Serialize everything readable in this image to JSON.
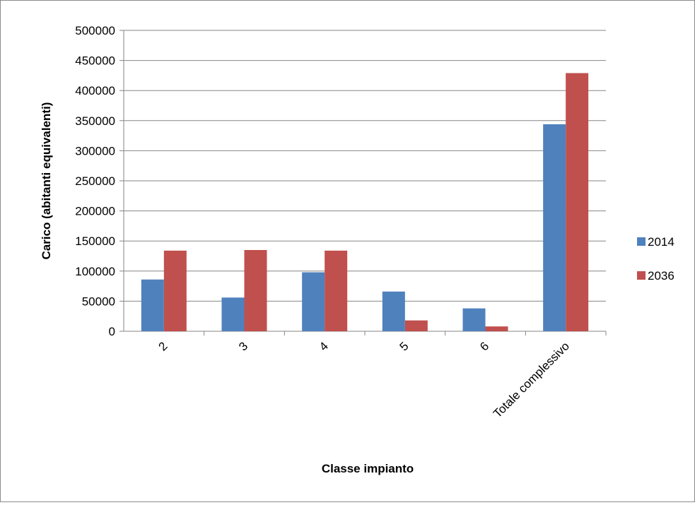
{
  "chart_data": {
    "type": "bar",
    "title": "",
    "xlabel": "Classe impianto",
    "ylabel": "Carico (abitanti equivalenti)",
    "categories": [
      "2",
      "3",
      "4",
      "5",
      "6",
      "Totale complessivo"
    ],
    "series": [
      {
        "name": "2014",
        "color": "#4F81BD",
        "values": [
          86000,
          56000,
          98000,
          66000,
          38000,
          344000
        ]
      },
      {
        "name": "2036",
        "color": "#C0504D",
        "values": [
          134000,
          135000,
          134000,
          18000,
          8000,
          429000
        ]
      }
    ],
    "ylim": [
      0,
      500000
    ],
    "yticks": [
      "0",
      "50000",
      "100000",
      "150000",
      "200000",
      "250000",
      "300000",
      "350000",
      "400000",
      "450000",
      "500000"
    ],
    "grid": true,
    "legend_position": "right"
  }
}
